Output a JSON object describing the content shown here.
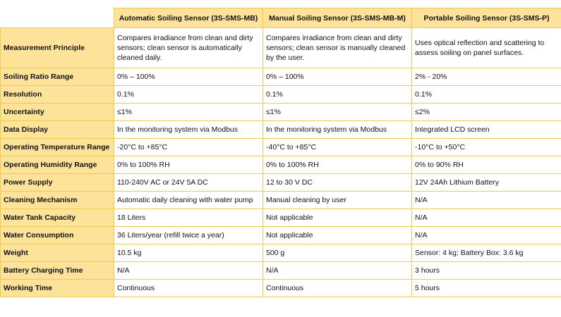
{
  "table": {
    "headers": [
      "",
      "Automatic Soiling Sensor (3S-SMS-MB)",
      "Manual Soiling Sensor (3S-SMS-MB-M)",
      "Portable Soiling Sensor (3S-SMS-P)"
    ],
    "rows": [
      [
        "Measurement Principle",
        "Compares irradiance from clean and dirty sensors; clean sensor is automatically cleaned daily.",
        "Compares irradiance from clean and dirty sensors; clean sensor is manually cleaned by the user.",
        "Uses optical reflection and scattering to assess soiling on panel surfaces."
      ],
      [
        "Soiling Ratio Range",
        "0% – 100%",
        "0% – 100%",
        "2% - 20%"
      ],
      [
        "Resolution",
        "0.1%",
        "0.1%",
        "0.1%"
      ],
      [
        "Uncertainty",
        "≤1%",
        "≤1%",
        "≤2%"
      ],
      [
        "Data Display",
        "In the monitoring system via Modbus",
        "In the monitoring system via Modbus",
        "Integrated LCD screen"
      ],
      [
        "Operating Temperature Range",
        "-20°C to +85°C",
        "-40°C to +85°C",
        "-10°C to +50°C"
      ],
      [
        "Operating Humidity Range",
        "0% to 100% RH",
        "0% to 100% RH",
        "0% to 90% RH"
      ],
      [
        "Power Supply",
        "110-240V AC or 24V 5A DC",
        "12 to 30 V DC",
        "12V 24Ah Lithium Battery"
      ],
      [
        "Cleaning Mechanism",
        "Automatic daily cleaning with water pump",
        "Manual cleaning by user",
        "N/A"
      ],
      [
        "Water Tank Capacity",
        "18 Liters",
        "Not applicable",
        "N/A"
      ],
      [
        "Water Consumption",
        "36 Liters/year (refill twice a year)",
        "Not applicable",
        "N/A"
      ],
      [
        "Weight",
        "10.5 kg",
        "500 g",
        "Sensor: 4 kg; Battery Box: 3.6 kg"
      ],
      [
        "Battery Charging Time",
        "N/A",
        "N/A",
        "3 hours"
      ],
      [
        "Working Time",
        "Continuous",
        "Continuous",
        "5 hours"
      ]
    ]
  }
}
